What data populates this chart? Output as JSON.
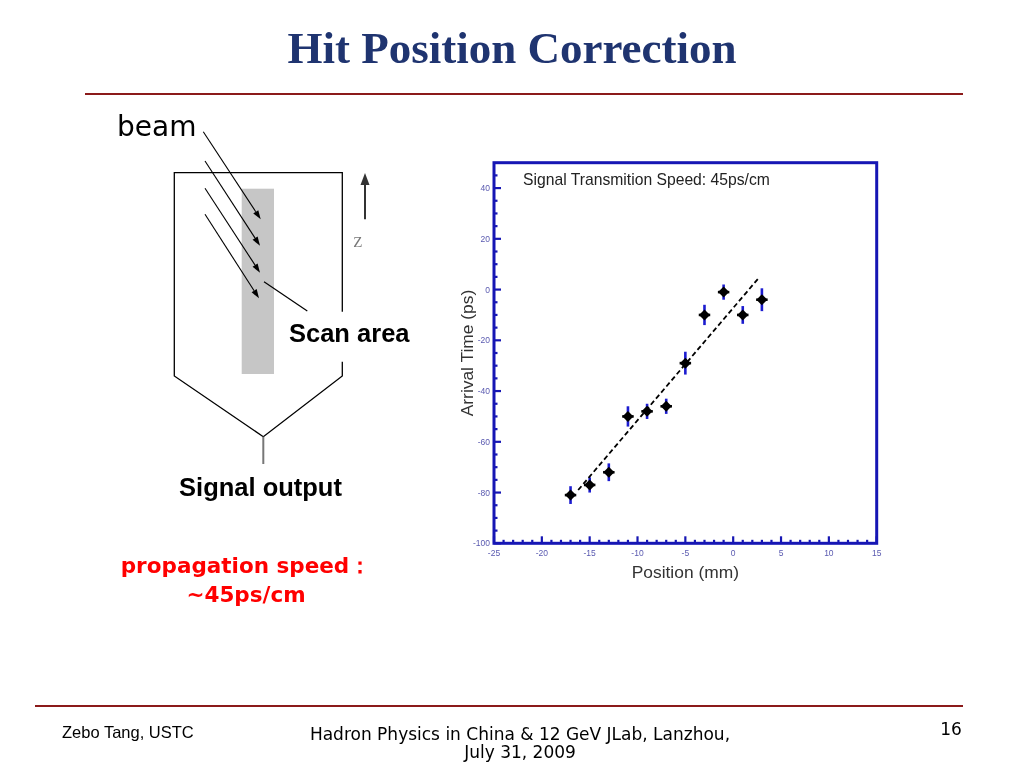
{
  "chart_data": {
    "type": "scatter",
    "title": "Hit Position Correction",
    "xlabel": "Position (mm)",
    "ylabel": "Arrival Time (ps)",
    "annotations": [
      "Signal Transmition Speed: 45ps/cm",
      "beam",
      "Z",
      "Scan area",
      "Signal output",
      "propagation speed：\n~45ps/cm",
      "Zebo Tang, USTC",
      "Hadron Physics in China & 12 GeV JLab, Lanzhou,\nJuly 31, 2009",
      "16"
    ],
    "xlim": [
      -25,
      15
    ],
    "ylim": [
      -100,
      50
    ],
    "xticks": [
      -25,
      {
        "value": -24,
        "label": null
      },
      {
        "value": -23,
        "label": null
      },
      {
        "value": -22,
        "label": null
      },
      {
        "value": -21,
        "label": null
      },
      -20,
      {
        "value": -19,
        "label": null
      },
      {
        "value": -18,
        "label": null
      },
      {
        "value": -17,
        "label": null
      },
      {
        "value": -16,
        "label": null
      },
      -15,
      {
        "value": -14,
        "label": null
      },
      {
        "value": -13,
        "label": null
      },
      {
        "value": -12,
        "label": null
      },
      {
        "value": -11,
        "label": null
      },
      -10,
      {
        "value": -9,
        "label": null
      },
      {
        "value": -8,
        "label": null
      },
      {
        "value": -7,
        "label": null
      },
      {
        "value": -6,
        "label": null
      },
      -5,
      {
        "value": -4,
        "label": null
      },
      {
        "value": -3,
        "label": null
      },
      {
        "value": -2,
        "label": null
      },
      {
        "value": -1,
        "label": null
      },
      0,
      {
        "value": 1,
        "label": null
      },
      {
        "value": 2,
        "label": null
      },
      {
        "value": 3,
        "label": null
      },
      {
        "value": 4,
        "label": null
      },
      5,
      {
        "value": 6,
        "label": null
      },
      {
        "value": 7,
        "label": null
      },
      {
        "value": 8,
        "label": null
      },
      {
        "value": 9,
        "label": null
      },
      10,
      {
        "value": 11,
        "label": null
      },
      {
        "value": 12,
        "label": null
      },
      {
        "value": 13,
        "label": null
      },
      {
        "value": 14,
        "label": null
      },
      15
    ],
    "yticks": [
      -100,
      {
        "value": -95,
        "label": null
      },
      {
        "value": -90,
        "label": null
      },
      {
        "value": -85,
        "label": null
      },
      -80,
      {
        "value": -75,
        "label": null
      },
      {
        "value": -70,
        "label": null
      },
      {
        "value": -65,
        "label": null
      },
      -60,
      {
        "value": -55,
        "label": null
      },
      {
        "value": -50,
        "label": null
      },
      {
        "value": -45,
        "label": null
      },
      -40,
      {
        "value": -35,
        "label": null
      },
      {
        "value": -30,
        "label": null
      },
      {
        "value": -25,
        "label": null
      },
      -20,
      {
        "value": -15,
        "label": null
      },
      {
        "value": -10,
        "label": null
      },
      {
        "value": -5,
        "label": null
      },
      0,
      {
        "value": 5,
        "label": null
      },
      {
        "value": 10,
        "label": null
      },
      {
        "value": 15,
        "label": null
      },
      20,
      {
        "value": 25,
        "label": null
      },
      {
        "value": 30,
        "label": null
      },
      {
        "value": 35,
        "label": null
      },
      40,
      {
        "value": 45,
        "label": null
      }
    ],
    "series": [
      {
        "color": "#000000",
        "marker": "diamond",
        "x": [
          -17,
          -15,
          -13,
          -11,
          -9,
          -7,
          -5,
          -3,
          -1,
          1,
          3
        ],
        "values": [
          -81,
          -77,
          -72,
          -50,
          -48,
          -46,
          -29,
          -10,
          -1,
          -10,
          -4
        ],
        "errors": [
          3.5,
          3,
          3.5,
          4,
          3,
          3,
          4.5,
          4,
          3,
          3.5,
          4.5
        ],
        "xerrors": [
          0.6,
          0.6,
          0.6,
          0.6,
          0.6,
          0.6,
          0.6,
          0.6,
          0.6,
          0.6,
          0.6
        ]
      },
      {
        "type": "line",
        "color": "#000000",
        "line_style": "dashed",
        "x": [
          -16.2,
          2.7
        ],
        "values": [
          -79,
          4.7
        ]
      }
    ]
  }
}
